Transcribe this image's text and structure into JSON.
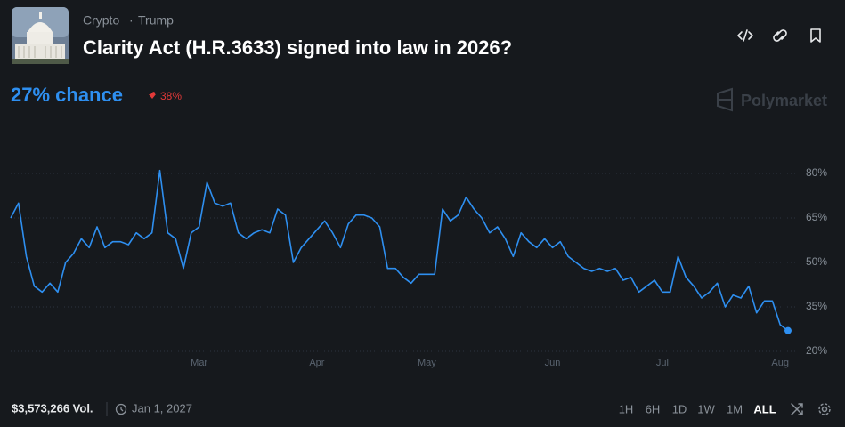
{
  "header": {
    "breadcrumbs": [
      "Crypto",
      "Trump"
    ],
    "title": "Clarity Act (H.R.3633) signed into law in 2026?"
  },
  "odds": {
    "label": "27% chance",
    "change": "38%"
  },
  "brand": "Polymarket",
  "footer": {
    "volume": "$3,573,266 Vol.",
    "end_date": "Jan 1, 2027",
    "ranges": [
      "1H",
      "6H",
      "1D",
      "1W",
      "1M",
      "ALL"
    ]
  },
  "chart_data": {
    "type": "line",
    "color": "#2e8ff0",
    "grid": true,
    "categories": [
      null,
      null,
      null,
      null,
      null,
      null,
      null,
      null,
      null,
      null,
      null,
      null,
      null,
      null,
      null,
      null,
      null,
      null,
      null,
      null,
      null,
      null,
      null,
      null,
      "Mar",
      null,
      null,
      null,
      null,
      null,
      null,
      null,
      null,
      null,
      null,
      null,
      null,
      null,
      null,
      "Apr",
      null,
      null,
      null,
      null,
      null,
      null,
      null,
      null,
      null,
      null,
      null,
      null,
      null,
      "May",
      null,
      null,
      null,
      null,
      null,
      null,
      null,
      null,
      null,
      null,
      null,
      null,
      null,
      null,
      null,
      "Jun",
      null,
      null,
      null,
      null,
      null,
      null,
      null,
      null,
      null,
      null,
      null,
      null,
      null,
      "Jul",
      null,
      null,
      null,
      null,
      null,
      null,
      null,
      null,
      null,
      null,
      null,
      null,
      null,
      null,
      "Aug",
      null
    ],
    "values": [
      65,
      70,
      52,
      42,
      40,
      43,
      40,
      50,
      53,
      58,
      55,
      62,
      55,
      57,
      57,
      56,
      60,
      58,
      60,
      81,
      60,
      58,
      48,
      60,
      62,
      77,
      70,
      69,
      70,
      60,
      58,
      60,
      61,
      60,
      68,
      66,
      50,
      55,
      58,
      61,
      64,
      60,
      55,
      63,
      66,
      66,
      65,
      62,
      48,
      48,
      45,
      43,
      46,
      46,
      46,
      68,
      64,
      66,
      72,
      68,
      65,
      60,
      62,
      58,
      52,
      60,
      57,
      55,
      58,
      55,
      57,
      52,
      50,
      48,
      47,
      48,
      47,
      48,
      44,
      45,
      40,
      42,
      44,
      40,
      40,
      52,
      45,
      42,
      38,
      40,
      43,
      35,
      39,
      38,
      42,
      33,
      37,
      37,
      29,
      27
    ],
    "ylim": [
      17,
      86
    ],
    "yticks": [
      {
        "value": 20,
        "label": "20%"
      },
      {
        "value": 35,
        "label": "35%"
      },
      {
        "value": 50,
        "label": "50%"
      },
      {
        "value": 65,
        "label": "65%"
      },
      {
        "value": 80,
        "label": "80%"
      }
    ]
  }
}
